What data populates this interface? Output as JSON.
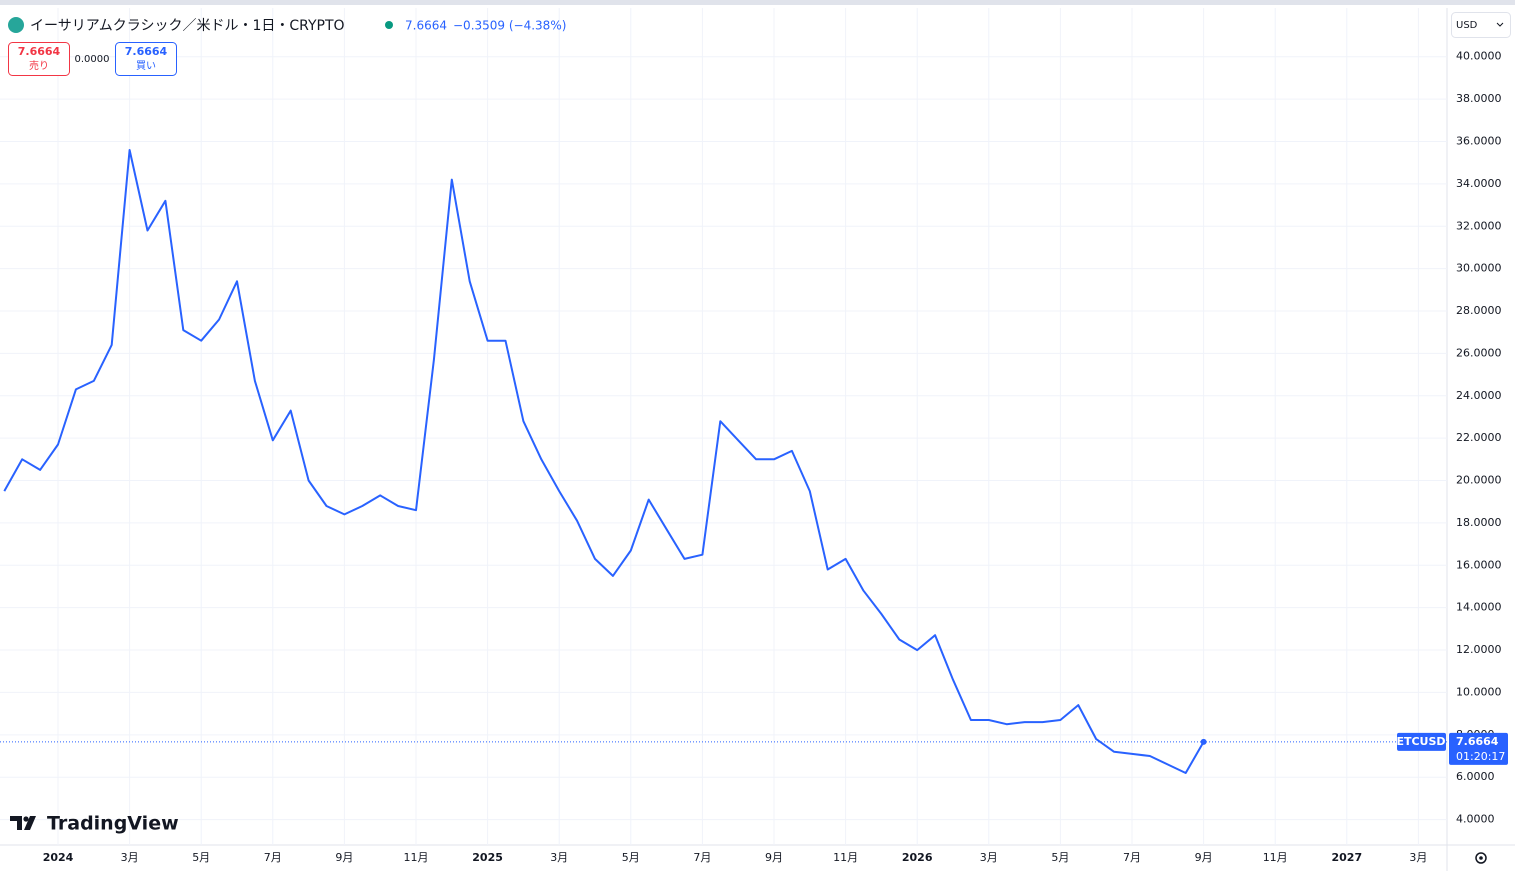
{
  "header": {
    "title": "イーサリアムクラシック／米ドル・1日・CRYPTO",
    "price": "7.6664",
    "change": "−0.3509 (−4.38%)",
    "sell_price": "7.6664",
    "sell_label": "売り",
    "spread": "0.0000",
    "buy_price": "7.6664",
    "buy_label": "買い",
    "currency": "USD",
    "logo": "TradingView"
  },
  "chart_data": {
    "type": "line",
    "categories": [
      null,
      null,
      null,
      "2024",
      null,
      null,
      null,
      "3月",
      null,
      null,
      null,
      "5月",
      null,
      null,
      null,
      "7月",
      null,
      null,
      null,
      "9月",
      null,
      null,
      null,
      "11月",
      null,
      null,
      null,
      "2025",
      null,
      null,
      null,
      "3月",
      null,
      null,
      null,
      "5月",
      null,
      null,
      null,
      "7月",
      null,
      null,
      null,
      "9月",
      null,
      null,
      null,
      "11月",
      null,
      null,
      null,
      "2026",
      null,
      null,
      null,
      "3月",
      null,
      null,
      null,
      "5月",
      null,
      null,
      null,
      "7月",
      null,
      null,
      null,
      "9月",
      null,
      null,
      null,
      "11月",
      null,
      null,
      null,
      "2027",
      null,
      null,
      null,
      "3月",
      null
    ],
    "series": [
      {
        "name": "ETCUSD",
        "color": "#2962ff",
        "values": [
          19.5,
          21.0,
          20.5,
          21.7,
          24.3,
          24.7,
          26.4,
          35.6,
          31.8,
          33.2,
          27.1,
          26.6,
          27.6,
          29.4,
          24.7,
          21.9,
          23.3,
          20.0,
          18.8,
          18.4,
          18.8,
          19.3,
          18.8,
          18.6,
          25.7,
          34.2,
          29.4,
          26.6,
          26.6,
          22.8,
          21.0,
          19.5,
          18.1,
          16.3,
          15.5,
          16.7,
          19.1,
          17.7,
          16.3,
          16.5,
          22.8,
          21.9,
          21.0,
          21.0,
          21.4,
          19.5,
          15.8,
          16.3,
          14.8,
          13.7,
          12.5,
          12.0,
          12.7,
          10.6,
          8.7,
          8.7,
          8.5,
          8.6,
          8.6,
          8.7,
          9.4,
          7.8,
          7.2,
          7.1,
          7.0,
          6.6,
          6.2,
          7.6664,
          null,
          null,
          null,
          null,
          null,
          null,
          null,
          null,
          null,
          null,
          null,
          null,
          null
        ]
      }
    ],
    "ylim": [
      2.8,
      42.3
    ],
    "yticks": [
      {
        "value": 4,
        "label": "4.0000"
      },
      {
        "value": 6,
        "label": "6.0000"
      },
      {
        "value": 8,
        "label": "8.0000"
      },
      {
        "value": 10,
        "label": "10.0000"
      },
      {
        "value": 12,
        "label": "12.0000"
      },
      {
        "value": 14,
        "label": "14.0000"
      },
      {
        "value": 16,
        "label": "16.0000"
      },
      {
        "value": 18,
        "label": "18.0000"
      },
      {
        "value": 20,
        "label": "20.0000"
      },
      {
        "value": 22,
        "label": "22.0000"
      },
      {
        "value": 24,
        "label": "24.0000"
      },
      {
        "value": 26,
        "label": "26.0000"
      },
      {
        "value": 28,
        "label": "28.0000"
      },
      {
        "value": 30,
        "label": "30.0000"
      },
      {
        "value": 32,
        "label": "32.0000"
      },
      {
        "value": 34,
        "label": "34.0000"
      },
      {
        "value": 36,
        "label": "36.0000"
      },
      {
        "value": 38,
        "label": "38.0000"
      },
      {
        "value": 40,
        "label": "40.0000"
      }
    ],
    "grid": true,
    "last_price": {
      "symbol": "ETCUSD",
      "value": 7.6664,
      "countdown": "01:20:17"
    }
  }
}
